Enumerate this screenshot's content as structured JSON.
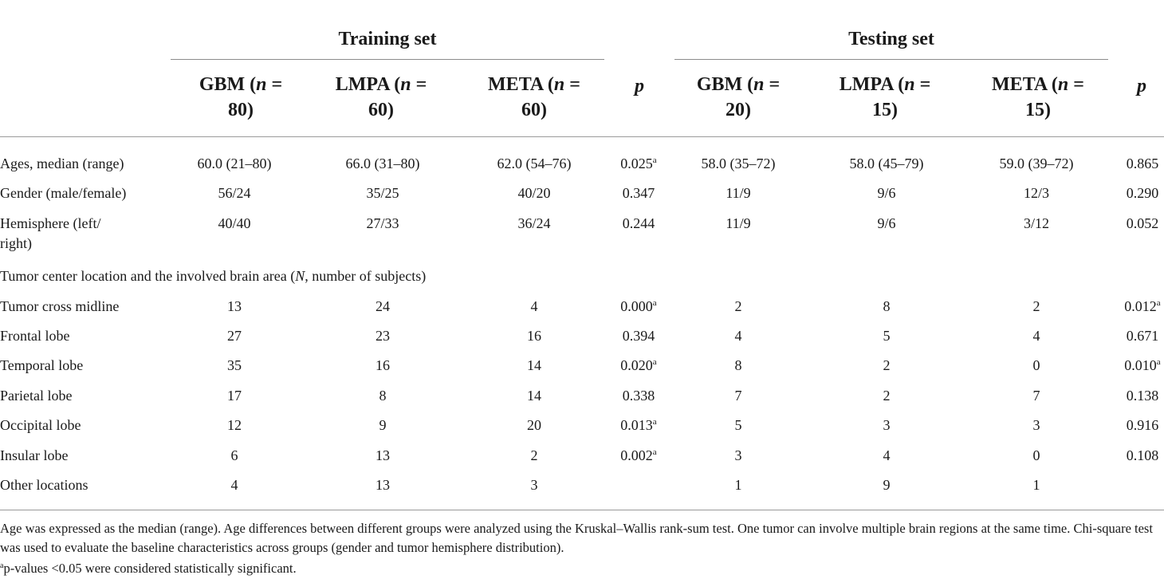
{
  "groups": {
    "training": "Training set",
    "testing": "Testing set"
  },
  "headers": [
    {
      "name": "GBM (",
      "n": "n",
      "rest": " =",
      "count": "80)"
    },
    {
      "name": "LMPA (",
      "n": "n",
      "rest": " =",
      "count": "60)"
    },
    {
      "name": "META (",
      "n": "n",
      "rest": " =",
      "count": "60)"
    },
    {
      "p": "p"
    },
    {
      "name": "GBM (",
      "n": "n",
      "rest": " =",
      "count": "20)"
    },
    {
      "name": "LMPA (",
      "n": "n",
      "rest": " =",
      "count": "15)"
    },
    {
      "name": "META (",
      "n": "n",
      "rest": " =",
      "count": "15)"
    },
    {
      "p": "p"
    }
  ],
  "rows": [
    {
      "label": "Ages, median (range)",
      "cells": [
        "60.0 (21–80)",
        "66.0 (31–80)",
        "62.0 (54–76)",
        "0.025",
        "58.0 (35–72)",
        "58.0 (45–79)",
        "59.0 (39–72)",
        "0.865"
      ],
      "sup": [
        "",
        "",
        "",
        "a",
        "",
        "",
        "",
        ""
      ]
    },
    {
      "label": "Gender (male/female)",
      "cells": [
        "56/24",
        "35/25",
        "40/20",
        "0.347",
        "11/9",
        "9/6",
        "12/3",
        "0.290"
      ],
      "sup": [
        "",
        "",
        "",
        "",
        "",
        "",
        "",
        ""
      ]
    },
    {
      "label": "Hemisphere (left/ right)",
      "cells": [
        "40/40",
        "27/33",
        "36/24",
        "0.244",
        "11/9",
        "9/6",
        "3/12",
        "0.052"
      ],
      "sup": [
        "",
        "",
        "",
        "",
        "",
        "",
        "",
        ""
      ]
    },
    {
      "section": "Tumor center location and the involved brain area (",
      "section_n": "N",
      "section_rest": ", number of subjects)"
    },
    {
      "label": "Tumor cross midline",
      "cells": [
        "13",
        "24",
        "4",
        "0.000",
        "2",
        "8",
        "2",
        "0.012"
      ],
      "sup": [
        "",
        "",
        "",
        "a",
        "",
        "",
        "",
        "a"
      ]
    },
    {
      "label": "Frontal lobe",
      "cells": [
        "27",
        "23",
        "16",
        "0.394",
        "4",
        "5",
        "4",
        "0.671"
      ],
      "sup": [
        "",
        "",
        "",
        "",
        "",
        "",
        "",
        ""
      ]
    },
    {
      "label": "Temporal lobe",
      "cells": [
        "35",
        "16",
        "14",
        "0.020",
        "8",
        "2",
        "0",
        "0.010"
      ],
      "sup": [
        "",
        "",
        "",
        "a",
        "",
        "",
        "",
        "a"
      ]
    },
    {
      "label": "Parietal lobe",
      "cells": [
        "17",
        "8",
        "14",
        "0.338",
        "7",
        "2",
        "7",
        "0.138"
      ],
      "sup": [
        "",
        "",
        "",
        "",
        "",
        "",
        "",
        ""
      ]
    },
    {
      "label": "Occipital lobe",
      "cells": [
        "12",
        "9",
        "20",
        "0.013",
        "5",
        "3",
        "3",
        "0.916"
      ],
      "sup": [
        "",
        "",
        "",
        "a",
        "",
        "",
        "",
        ""
      ]
    },
    {
      "label": "Insular lobe",
      "cells": [
        "6",
        "13",
        "2",
        "0.002",
        "3",
        "4",
        "0",
        "0.108"
      ],
      "sup": [
        "",
        "",
        "",
        "a",
        "",
        "",
        "",
        ""
      ]
    },
    {
      "label": "Other locations",
      "cells": [
        "4",
        "13",
        "3",
        "",
        "1",
        "9",
        "1",
        ""
      ],
      "sup": [
        "",
        "",
        "",
        "",
        "",
        "",
        "",
        ""
      ]
    }
  ],
  "footnotes": {
    "main": "Age was expressed as the median (range). Age differences between different groups were analyzed using the Kruskal–Wallis rank-sum test. One tumor can involve multiple brain regions at the same time. Chi-square test was used to evaluate the baseline characteristics across groups (gender and tumor hemisphere distribution).",
    "sig_mark": "a",
    "sig": "p-values <0.05 were considered statistically significant."
  }
}
